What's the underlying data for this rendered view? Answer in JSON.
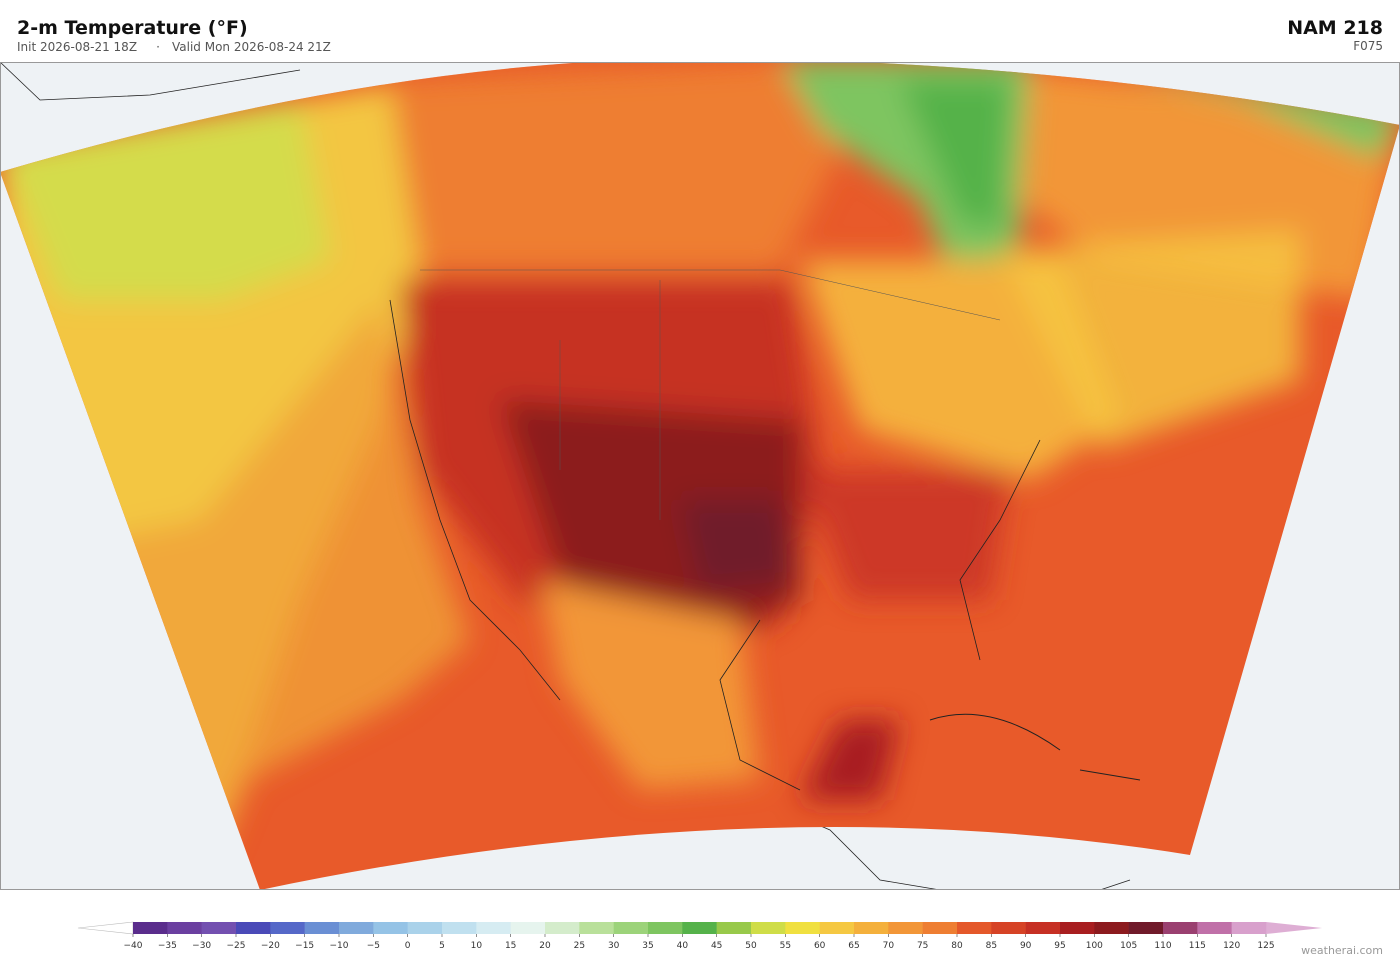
{
  "header": {
    "title": "2-m Temperature  (°F)",
    "init": "Init 2026-08-21 18Z",
    "separator": "·",
    "valid": "Valid Mon 2026-08-24 21Z",
    "model": "NAM  218",
    "forecast_hour": "F075"
  },
  "colorbar": {
    "ticks": [
      {
        "value": -40,
        "label": "−40"
      },
      {
        "value": -35,
        "label": "−35"
      },
      {
        "value": -30,
        "label": "−30"
      },
      {
        "value": -25,
        "label": "−25"
      },
      {
        "value": -20,
        "label": "−20"
      },
      {
        "value": -15,
        "label": "−15"
      },
      {
        "value": -10,
        "label": "−10"
      },
      {
        "value": -5,
        "label": "−5"
      },
      0,
      5,
      10,
      15,
      20,
      25,
      30,
      35,
      40,
      45,
      50,
      55,
      60,
      65,
      70,
      75,
      80,
      85,
      90,
      95,
      100,
      105,
      110,
      115,
      120,
      125
    ],
    "colors": [
      "#5a2d8c",
      "#6b3fa0",
      "#7350b0",
      "#4a4ab8",
      "#5568c8",
      "#6a8fd4",
      "#80aadc",
      "#95c3e6",
      "#aad2ea",
      "#c0e0ef",
      "#d6ecf2",
      "#e6f4ee",
      "#d4eccb",
      "#b9e09a",
      "#9cd37a",
      "#7ec560",
      "#55b24a",
      "#98c94a",
      "#cfdd48",
      "#f0e040",
      "#f5c842",
      "#f4b03c",
      "#f29638",
      "#ee7e32",
      "#e4582a",
      "#d64326",
      "#c63024",
      "#a81e20",
      "#8c1a1e",
      "#701a2a",
      "#9a4070",
      "#c070a8",
      "#d8a0cc"
    ]
  },
  "footer": {
    "credit": "weatherai.com"
  }
}
